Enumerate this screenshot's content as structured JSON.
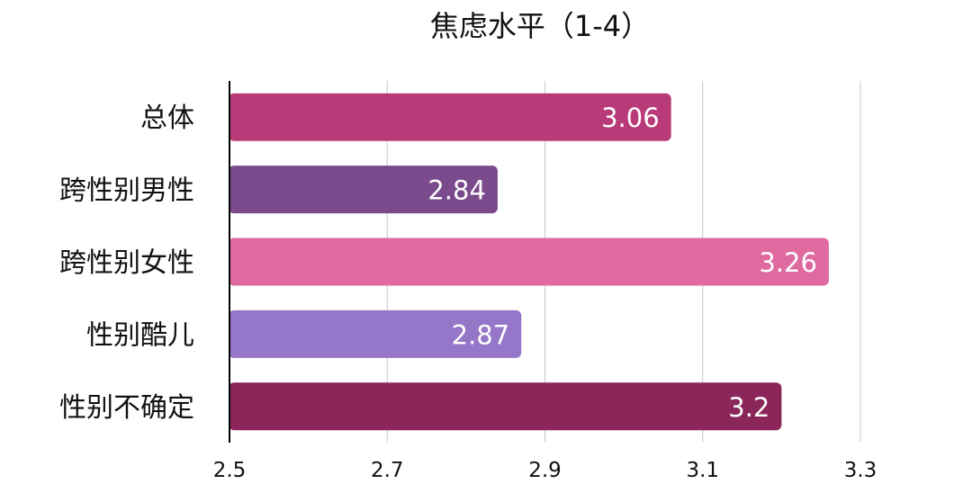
{
  "chart_data": {
    "type": "bar",
    "orientation": "horizontal",
    "title": "焦虑水平（1-4）",
    "categories": [
      "总体",
      "跨性别男性",
      "跨性别女性",
      "性别酷儿",
      "性别不确定"
    ],
    "values": [
      3.06,
      2.84,
      3.26,
      2.87,
      3.2
    ],
    "value_labels": [
      "3.06",
      "2.84",
      "3.26",
      "2.87",
      "3.2"
    ],
    "bar_colors": [
      "#b83a78",
      "#7a4a8c",
      "#de6aa0",
      "#9676c8",
      "#8a2659"
    ],
    "xlim": [
      2.5,
      3.3
    ],
    "xticks": [
      2.5,
      2.7,
      2.9,
      3.1,
      3.3
    ],
    "xtick_labels": [
      "2.5",
      "2.7",
      "2.9",
      "3.1",
      "3.3"
    ],
    "grid": true,
    "xlabel": "",
    "ylabel": ""
  }
}
